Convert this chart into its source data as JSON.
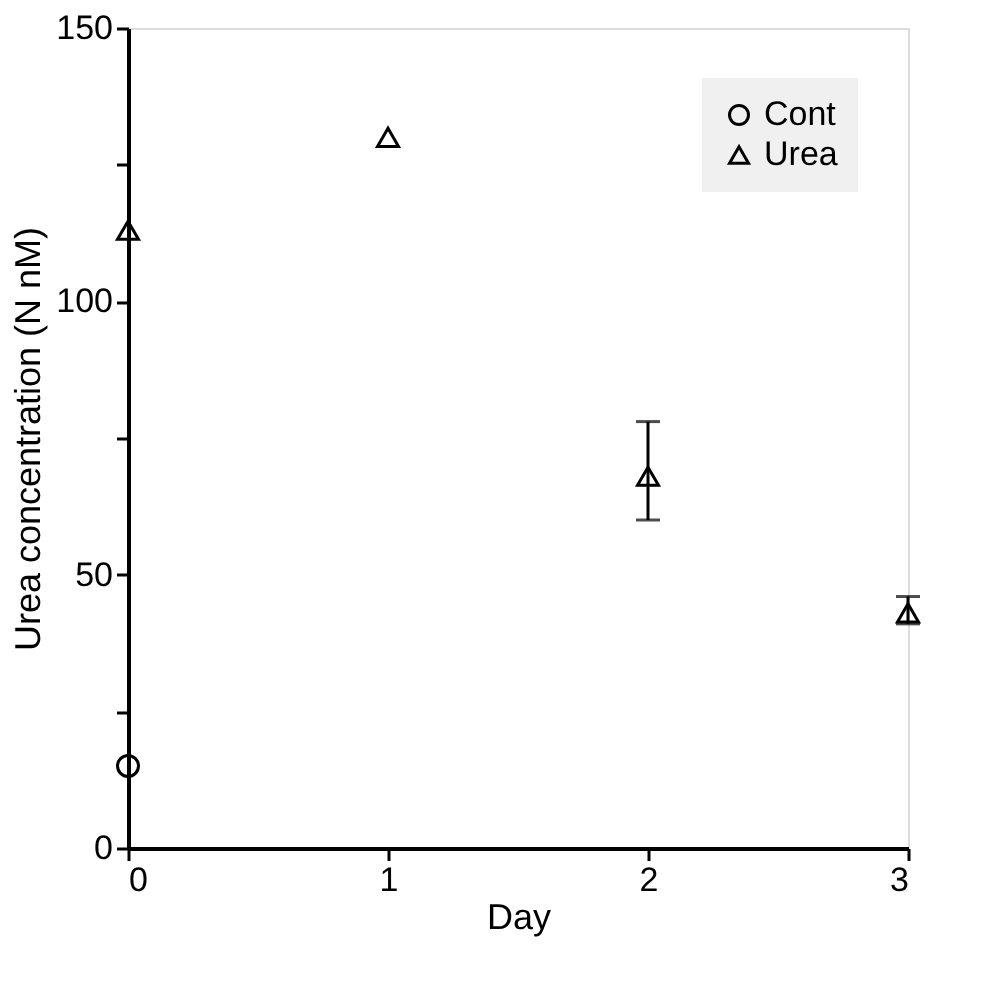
{
  "chart_data": {
    "type": "scatter",
    "xlabel": "Day",
    "ylabel": "Urea concentration (N nM)",
    "xlim": [
      0,
      3
    ],
    "xticks": [
      0,
      1,
      2,
      3
    ],
    "ylim": [
      0,
      150
    ],
    "yticks": [
      0,
      {
        "value": 25,
        "label": null
      },
      50,
      {
        "value": 75,
        "label": null
      },
      100,
      {
        "value": 125,
        "label": null
      },
      150
    ],
    "grid": false,
    "legend": "top right",
    "series": [
      {
        "name": "Cont",
        "color": "#000000",
        "marker": "circle",
        "x": [
          0
        ],
        "values": [
          15
        ]
      },
      {
        "name": "Urea",
        "color": "#000000",
        "marker": "triangle",
        "x": [
          0,
          1,
          2,
          3
        ],
        "values": [
          113,
          130,
          68,
          43
        ],
        "errors": [
          null,
          null,
          [
            60,
            78
          ],
          [
            41,
            46
          ]
        ]
      }
    ]
  }
}
